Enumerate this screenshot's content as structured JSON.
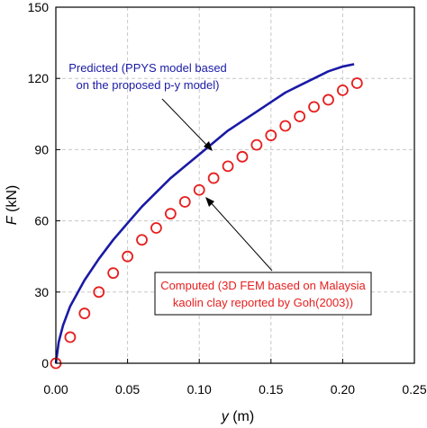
{
  "chart_data": {
    "type": "scatter",
    "xlabel_italic": "y",
    "xlabel_unit": " (m)",
    "ylabel_italic": "F",
    "ylabel_unit": " (kN)",
    "xlim": [
      0,
      0.25
    ],
    "ylim": [
      0,
      150
    ],
    "xticks": [
      "0.00",
      "0.05",
      "0.10",
      "0.15",
      "0.20",
      "0.25"
    ],
    "yticks": [
      "0",
      "30",
      "60",
      "90",
      "120",
      "150"
    ],
    "grid": true,
    "series": [
      {
        "name": "Predicted (PPYS model based on the proposed p-y model)",
        "style": "line",
        "color": "#1a1aa6",
        "x": [
          0,
          0.002,
          0.005,
          0.01,
          0.02,
          0.03,
          0.04,
          0.05,
          0.06,
          0.07,
          0.08,
          0.09,
          0.1,
          0.11,
          0.12,
          0.13,
          0.14,
          0.15,
          0.16,
          0.17,
          0.18,
          0.19,
          0.2,
          0.208
        ],
        "y": [
          0,
          9,
          16,
          24,
          35,
          44,
          52,
          59,
          66,
          72,
          78,
          83,
          88,
          93,
          98,
          102,
          106,
          110,
          114,
          117,
          120,
          123,
          125,
          126
        ]
      },
      {
        "name": "Computed (3D FEM based on Malaysia kaolin clay reported by Goh(2003))",
        "style": "markers",
        "color": "#e61e1e",
        "x": [
          0,
          0.01,
          0.02,
          0.03,
          0.04,
          0.05,
          0.06,
          0.07,
          0.08,
          0.09,
          0.1,
          0.11,
          0.12,
          0.13,
          0.14,
          0.15,
          0.16,
          0.17,
          0.18,
          0.19,
          0.2,
          0.21
        ],
        "y": [
          0,
          11,
          21,
          30,
          38,
          45,
          52,
          57,
          63,
          68,
          73,
          78,
          83,
          87,
          92,
          96,
          100,
          104,
          108,
          111,
          115,
          118
        ]
      }
    ],
    "annotations": [
      {
        "lines": [
          "Predicted (PPYS model based",
          "on the proposed p-y model)"
        ],
        "color": "#1a1aa6",
        "boxed": false
      },
      {
        "lines": [
          "Computed (3D FEM based on Malaysia",
          "kaolin clay reported by Goh(2003))"
        ],
        "color": "#e61e1e",
        "boxed": true
      }
    ]
  }
}
